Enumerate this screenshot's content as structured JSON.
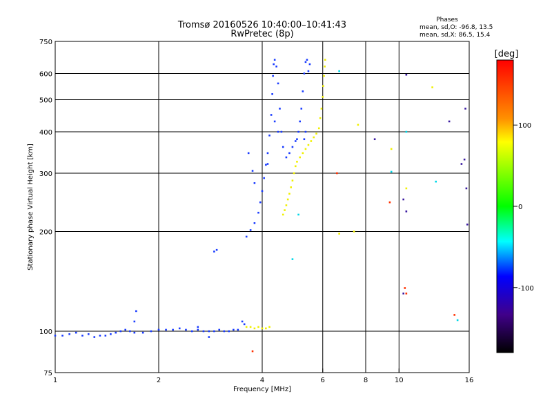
{
  "chart_data": {
    "type": "scatter",
    "title": "Tromsø 20160526 10:40:00–10:41:43",
    "subtitle": "RwPretec (8p)",
    "xlabel": "Frequency [MHz]",
    "ylabel": "Stationary phase Virtual Height [km]",
    "x_scale": "log",
    "y_scale": "log",
    "xlim": [
      1,
      16
    ],
    "ylim": [
      75,
      750
    ],
    "x_ticks": [
      1,
      2,
      4,
      6,
      8,
      10,
      16
    ],
    "x_tick_labels": [
      "1",
      "2",
      "4",
      "6",
      "8",
      "10",
      "16"
    ],
    "y_ticks": [
      75,
      100,
      200,
      300,
      400,
      500,
      600,
      750
    ],
    "y_tick_labels": [
      "75",
      "100",
      "200",
      "300",
      "400",
      "500",
      "600",
      "750"
    ],
    "x_gridlines": [
      2,
      4,
      6,
      8,
      10
    ],
    "y_gridlines": [
      100,
      200,
      300,
      400,
      500,
      600
    ],
    "grid": true,
    "stats_title": "Phases",
    "stats_lines": [
      "mean, sd,O: -96.8, 13.5",
      "mean, sd,X:  86.5, 15.4"
    ],
    "colorbar": {
      "label": "[deg]",
      "range": [
        -180,
        180
      ],
      "ticks": [
        100,
        0,
        -100
      ],
      "tick_labels": [
        "100",
        "0",
        "-100"
      ],
      "colors": [
        "#ff0000",
        "#ff8000",
        "#ffff00",
        "#00ff00",
        "#00ffff",
        "#0000ff",
        "#400080",
        "#000000"
      ]
    },
    "series": [
      {
        "color": "#1a3cff",
        "points": [
          [
            1.0,
            97
          ],
          [
            1.05,
            97
          ],
          [
            1.1,
            98
          ],
          [
            1.15,
            99
          ],
          [
            1.2,
            97
          ],
          [
            1.25,
            98
          ],
          [
            1.3,
            96
          ],
          [
            1.35,
            97
          ],
          [
            1.4,
            97
          ],
          [
            1.45,
            98
          ],
          [
            1.5,
            99
          ],
          [
            1.55,
            100
          ],
          [
            1.6,
            101
          ],
          [
            1.65,
            100
          ],
          [
            1.7,
            99
          ],
          [
            1.8,
            99
          ],
          [
            1.9,
            100
          ],
          [
            2.0,
            101
          ],
          [
            2.1,
            101
          ],
          [
            2.2,
            101
          ],
          [
            2.3,
            102
          ],
          [
            2.4,
            101
          ],
          [
            2.5,
            100
          ],
          [
            2.6,
            101
          ],
          [
            2.7,
            100
          ],
          [
            2.8,
            100
          ],
          [
            2.9,
            100
          ],
          [
            3.0,
            101
          ],
          [
            3.1,
            100
          ],
          [
            3.2,
            100
          ],
          [
            3.3,
            101
          ],
          [
            3.4,
            101
          ],
          [
            1.72,
            115
          ],
          [
            1.7,
            107
          ],
          [
            2.8,
            96
          ],
          [
            2.6,
            103
          ],
          [
            2.95,
            176
          ],
          [
            2.9,
            174
          ],
          [
            3.5,
            107
          ],
          [
            3.55,
            105
          ],
          [
            3.6,
            193
          ],
          [
            3.7,
            202
          ],
          [
            3.8,
            212
          ],
          [
            3.9,
            228
          ],
          [
            3.95,
            245
          ],
          [
            4.0,
            265
          ],
          [
            4.05,
            290
          ],
          [
            4.1,
            318
          ],
          [
            4.15,
            345
          ],
          [
            4.2,
            390
          ],
          [
            4.25,
            450
          ],
          [
            4.28,
            520
          ],
          [
            4.3,
            590
          ],
          [
            4.32,
            640
          ],
          [
            4.35,
            660
          ],
          [
            4.4,
            630
          ],
          [
            4.45,
            560
          ],
          [
            4.5,
            470
          ],
          [
            4.55,
            400
          ],
          [
            4.6,
            360
          ],
          [
            4.7,
            335
          ],
          [
            4.8,
            345
          ],
          [
            4.9,
            360
          ],
          [
            5.0,
            375
          ],
          [
            5.05,
            380
          ],
          [
            5.1,
            400
          ],
          [
            5.15,
            430
          ],
          [
            5.2,
            470
          ],
          [
            5.25,
            530
          ],
          [
            5.3,
            600
          ],
          [
            5.35,
            650
          ],
          [
            5.4,
            660
          ],
          [
            5.5,
            640
          ],
          [
            5.45,
            610
          ],
          [
            3.65,
            345
          ],
          [
            3.75,
            305
          ],
          [
            3.8,
            280
          ],
          [
            4.15,
            320
          ],
          [
            4.35,
            430
          ],
          [
            4.45,
            400
          ],
          [
            5.3,
            380
          ],
          [
            5.35,
            400
          ]
        ]
      },
      {
        "color": "#f0f000",
        "points": [
          [
            3.6,
            103
          ],
          [
            3.7,
            103
          ],
          [
            3.8,
            102
          ],
          [
            3.9,
            103
          ],
          [
            4.0,
            102
          ],
          [
            4.1,
            102
          ],
          [
            4.2,
            103
          ],
          [
            4.6,
            225
          ],
          [
            4.65,
            232
          ],
          [
            4.7,
            240
          ],
          [
            4.75,
            250
          ],
          [
            4.8,
            260
          ],
          [
            4.85,
            272
          ],
          [
            4.9,
            285
          ],
          [
            4.95,
            300
          ],
          [
            5.0,
            315
          ],
          [
            5.05,
            325
          ],
          [
            5.15,
            335
          ],
          [
            5.25,
            345
          ],
          [
            5.35,
            355
          ],
          [
            5.45,
            365
          ],
          [
            5.55,
            375
          ],
          [
            5.65,
            385
          ],
          [
            5.75,
            395
          ],
          [
            5.85,
            410
          ],
          [
            5.9,
            440
          ],
          [
            5.95,
            470
          ],
          [
            6.0,
            510
          ],
          [
            6.02,
            550
          ],
          [
            6.05,
            590
          ],
          [
            6.08,
            630
          ],
          [
            6.1,
            660
          ],
          [
            7.6,
            420
          ],
          [
            6.7,
            197
          ],
          [
            7.4,
            200
          ],
          [
            9.5,
            355
          ],
          [
            10.5,
            270
          ],
          [
            12.5,
            545
          ]
        ]
      },
      {
        "color": "#00d8e8",
        "points": [
          [
            5.1,
            225
          ],
          [
            4.9,
            165
          ],
          [
            6.7,
            610
          ],
          [
            9.5,
            303
          ],
          [
            10.5,
            400
          ],
          [
            12.8,
            283
          ],
          [
            14.8,
            108
          ]
        ]
      },
      {
        "color": "#ff3000",
        "points": [
          [
            3.75,
            87
          ],
          [
            6.6,
            300
          ],
          [
            9.4,
            245
          ],
          [
            10.4,
            135
          ],
          [
            10.5,
            130
          ],
          [
            14.5,
            112
          ]
        ]
      },
      {
        "color": "#3a1aa0",
        "points": [
          [
            10.3,
            250
          ],
          [
            10.5,
            230
          ],
          [
            10.5,
            595
          ],
          [
            14.0,
            430
          ],
          [
            15.5,
            330
          ],
          [
            15.6,
            470
          ],
          [
            15.7,
            270
          ],
          [
            15.8,
            210
          ],
          [
            15.2,
            320
          ],
          [
            8.5,
            380
          ],
          [
            10.3,
            130
          ]
        ]
      }
    ]
  }
}
